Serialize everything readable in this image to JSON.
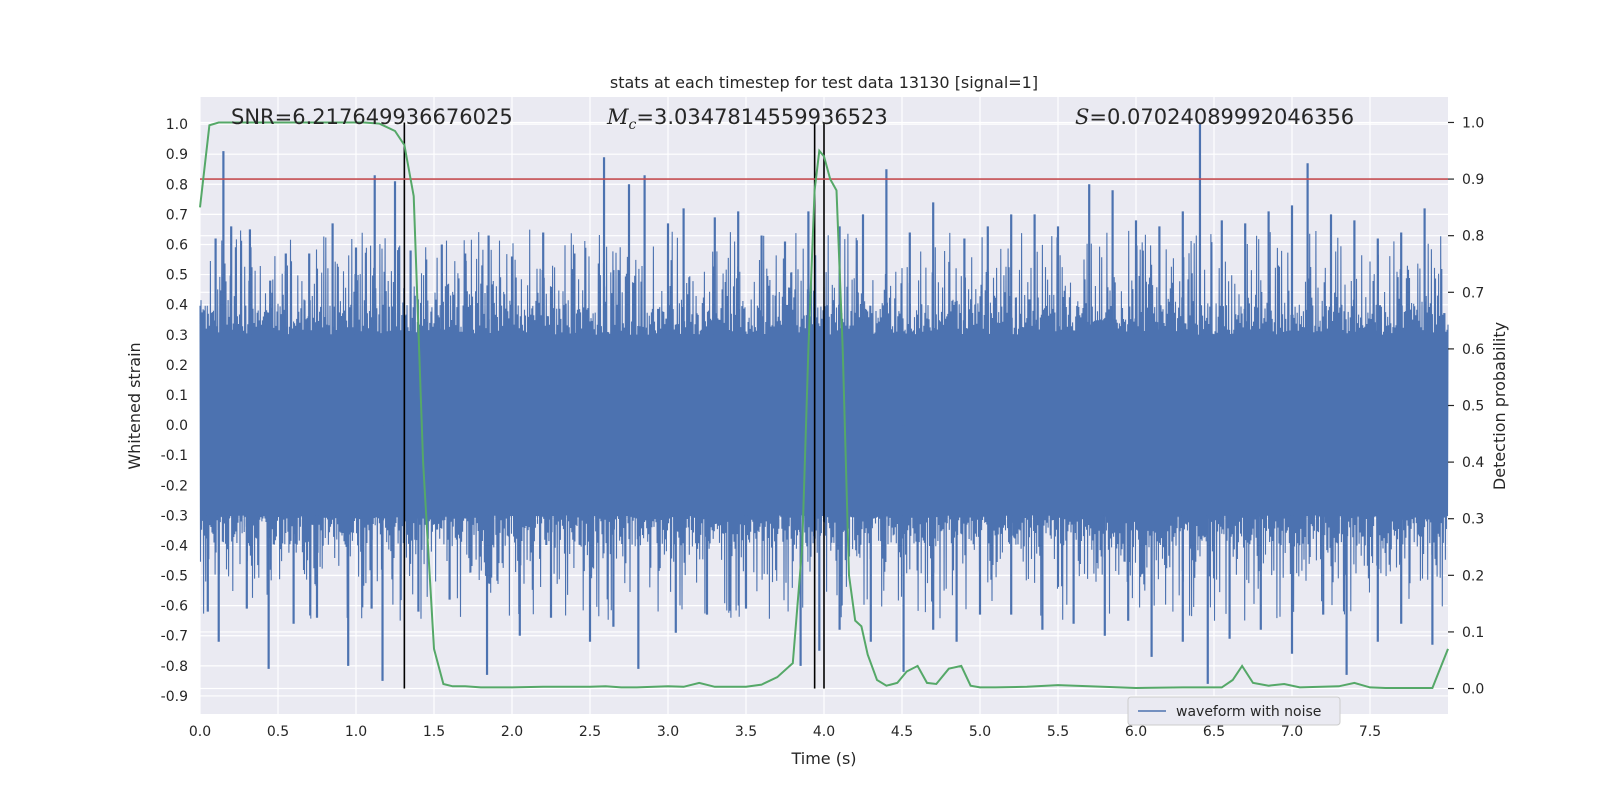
{
  "chart_data": {
    "type": "line",
    "title": "stats at each timestep for test data 13130 [signal=1]",
    "xlabel": "Time (s)",
    "ylabel": "Whitened strain",
    "y2label": "Detection probability",
    "xlim": [
      0.0,
      8.0
    ],
    "ylim": [
      -0.96,
      1.09
    ],
    "y2lim": [
      -0.045,
      1.045
    ],
    "x_ticks": [
      "0.0",
      "0.5",
      "1.0",
      "1.5",
      "2.0",
      "2.5",
      "3.0",
      "3.5",
      "4.0",
      "4.5",
      "5.0",
      "5.5",
      "6.0",
      "6.5",
      "7.0",
      "7.5"
    ],
    "y_ticks": [
      "1.0",
      "0.9",
      "0.8",
      "0.7",
      "0.6",
      "0.5",
      "0.4",
      "0.3",
      "0.2",
      "0.1",
      "0.0",
      "-0.1",
      "-0.2",
      "-0.3",
      "-0.4",
      "-0.5",
      "-0.6",
      "-0.7",
      "-0.8",
      "-0.9"
    ],
    "y2_ticks": [
      "1.0",
      "0.9",
      "0.8",
      "0.7",
      "0.6",
      "0.5",
      "0.4",
      "0.3",
      "0.2",
      "0.1",
      "0.0"
    ],
    "grid": true,
    "legend_placement": "bottom-right",
    "annotations": {
      "snr": "SNR=6.217649936676025",
      "mc_symbol": "M",
      "mc_sub": "c",
      "mc_value": "=3.0347814559936523",
      "s_symbol": "S",
      "s_value": "=0.07024089992046356"
    },
    "threshold": {
      "y2": 0.9,
      "color": "#c44e52"
    },
    "vertical_markers": [
      1.31,
      3.94,
      4.0
    ],
    "waveform": {
      "name": "waveform with noise",
      "color": "#4c72b0",
      "core_amplitude": 0.3,
      "spikes": [
        {
          "x": 0.1,
          "y": 0.62
        },
        {
          "x": 0.15,
          "y": 0.91
        },
        {
          "x": 0.2,
          "y": 0.66
        },
        {
          "x": 0.32,
          "y": 0.65
        },
        {
          "x": 0.45,
          "y": 0.48
        },
        {
          "x": 0.55,
          "y": 0.57
        },
        {
          "x": 0.7,
          "y": 0.57
        },
        {
          "x": 0.85,
          "y": 0.67
        },
        {
          "x": 1.0,
          "y": 0.59
        },
        {
          "x": 1.12,
          "y": 0.83
        },
        {
          "x": 1.25,
          "y": 0.81
        },
        {
          "x": 1.35,
          "y": 0.58
        },
        {
          "x": 1.45,
          "y": 0.55
        },
        {
          "x": 1.55,
          "y": 0.6
        },
        {
          "x": 1.7,
          "y": 0.57
        },
        {
          "x": 1.85,
          "y": 0.63
        },
        {
          "x": 2.0,
          "y": 0.56
        },
        {
          "x": 2.2,
          "y": 0.64
        },
        {
          "x": 2.4,
          "y": 0.57
        },
        {
          "x": 2.59,
          "y": 0.89
        },
        {
          "x": 2.75,
          "y": 0.8
        },
        {
          "x": 2.85,
          "y": 0.83
        },
        {
          "x": 3.0,
          "y": 0.67
        },
        {
          "x": 3.1,
          "y": 0.72
        },
        {
          "x": 3.3,
          "y": 0.69
        },
        {
          "x": 3.45,
          "y": 0.71
        },
        {
          "x": 3.6,
          "y": 0.63
        },
        {
          "x": 3.75,
          "y": 0.61
        },
        {
          "x": 3.9,
          "y": 0.71
        },
        {
          "x": 4.1,
          "y": 0.66
        },
        {
          "x": 4.25,
          "y": 0.7
        },
        {
          "x": 4.4,
          "y": 0.85
        },
        {
          "x": 4.55,
          "y": 0.64
        },
        {
          "x": 4.7,
          "y": 0.74
        },
        {
          "x": 4.9,
          "y": 0.62
        },
        {
          "x": 5.05,
          "y": 0.66
        },
        {
          "x": 5.2,
          "y": 0.7
        },
        {
          "x": 5.35,
          "y": 0.7
        },
        {
          "x": 5.5,
          "y": 0.66
        },
        {
          "x": 5.7,
          "y": 0.8
        },
        {
          "x": 5.85,
          "y": 0.78
        },
        {
          "x": 6.0,
          "y": 0.68
        },
        {
          "x": 6.15,
          "y": 0.66
        },
        {
          "x": 6.3,
          "y": 0.71
        },
        {
          "x": 6.41,
          "y": 1.0
        },
        {
          "x": 6.55,
          "y": 0.68
        },
        {
          "x": 6.7,
          "y": 0.67
        },
        {
          "x": 6.85,
          "y": 0.71
        },
        {
          "x": 7.0,
          "y": 0.73
        },
        {
          "x": 7.1,
          "y": 0.87
        },
        {
          "x": 7.25,
          "y": 0.7
        },
        {
          "x": 7.4,
          "y": 0.68
        },
        {
          "x": 7.55,
          "y": 0.62
        },
        {
          "x": 7.7,
          "y": 0.64
        },
        {
          "x": 7.85,
          "y": 0.72
        },
        {
          "x": 0.05,
          "y": -0.62
        },
        {
          "x": 0.12,
          "y": -0.72
        },
        {
          "x": 0.3,
          "y": -0.61
        },
        {
          "x": 0.44,
          "y": -0.81
        },
        {
          "x": 0.6,
          "y": -0.66
        },
        {
          "x": 0.75,
          "y": -0.64
        },
        {
          "x": 0.95,
          "y": -0.8
        },
        {
          "x": 1.1,
          "y": -0.61
        },
        {
          "x": 1.17,
          "y": -0.85
        },
        {
          "x": 1.4,
          "y": -0.62
        },
        {
          "x": 1.6,
          "y": -0.58
        },
        {
          "x": 1.84,
          "y": -0.83
        },
        {
          "x": 2.05,
          "y": -0.7
        },
        {
          "x": 2.25,
          "y": -0.64
        },
        {
          "x": 2.5,
          "y": -0.72
        },
        {
          "x": 2.65,
          "y": -0.67
        },
        {
          "x": 2.81,
          "y": -0.81
        },
        {
          "x": 3.05,
          "y": -0.69
        },
        {
          "x": 3.25,
          "y": -0.63
        },
        {
          "x": 3.5,
          "y": -0.61
        },
        {
          "x": 3.85,
          "y": -0.8
        },
        {
          "x": 3.97,
          "y": -0.75
        },
        {
          "x": 4.1,
          "y": -0.68
        },
        {
          "x": 4.3,
          "y": -0.72
        },
        {
          "x": 4.51,
          "y": -0.82
        },
        {
          "x": 4.7,
          "y": -0.68
        },
        {
          "x": 4.85,
          "y": -0.72
        },
        {
          "x": 5.0,
          "y": -0.63
        },
        {
          "x": 5.2,
          "y": -0.63
        },
        {
          "x": 5.4,
          "y": -0.68
        },
        {
          "x": 5.6,
          "y": -0.66
        },
        {
          "x": 5.8,
          "y": -0.7
        },
        {
          "x": 5.95,
          "y": -0.65
        },
        {
          "x": 6.1,
          "y": -0.77
        },
        {
          "x": 6.3,
          "y": -0.72
        },
        {
          "x": 6.46,
          "y": -0.86
        },
        {
          "x": 6.6,
          "y": -0.71
        },
        {
          "x": 6.8,
          "y": -0.68
        },
        {
          "x": 7.0,
          "y": -0.76
        },
        {
          "x": 7.2,
          "y": -0.63
        },
        {
          "x": 7.35,
          "y": -0.83
        },
        {
          "x": 7.55,
          "y": -0.72
        },
        {
          "x": 7.7,
          "y": -0.66
        },
        {
          "x": 7.9,
          "y": -0.73
        }
      ]
    },
    "detection_probability": {
      "color": "#55a868",
      "x": [
        0.0,
        0.06,
        0.12,
        0.2,
        0.3,
        0.5,
        0.7,
        0.9,
        1.05,
        1.15,
        1.25,
        1.31,
        1.37,
        1.43,
        1.5,
        1.56,
        1.62,
        1.7,
        1.8,
        2.0,
        2.2,
        2.4,
        2.5,
        2.6,
        2.7,
        2.8,
        3.0,
        3.1,
        3.2,
        3.3,
        3.5,
        3.6,
        3.7,
        3.8,
        3.86,
        3.9,
        3.94,
        3.97,
        4.0,
        4.04,
        4.08,
        4.12,
        4.16,
        4.2,
        4.24,
        4.28,
        4.34,
        4.4,
        4.47,
        4.53,
        4.6,
        4.66,
        4.72,
        4.8,
        4.88,
        4.94,
        5.0,
        5.1,
        5.3,
        5.5,
        5.7,
        6.0,
        6.3,
        6.55,
        6.62,
        6.68,
        6.75,
        6.85,
        6.95,
        7.05,
        7.3,
        7.4,
        7.5,
        7.6,
        7.8,
        7.9,
        8.0
      ],
      "values": [
        0.85,
        0.995,
        1.0,
        1.0,
        1.0,
        1.0,
        1.0,
        1.0,
        1.0,
        0.998,
        0.985,
        0.96,
        0.87,
        0.4,
        0.07,
        0.008,
        0.004,
        0.004,
        0.002,
        0.002,
        0.003,
        0.003,
        0.003,
        0.004,
        0.002,
        0.002,
        0.004,
        0.003,
        0.01,
        0.003,
        0.003,
        0.007,
        0.02,
        0.045,
        0.25,
        0.6,
        0.88,
        0.95,
        0.94,
        0.9,
        0.88,
        0.6,
        0.2,
        0.12,
        0.11,
        0.06,
        0.015,
        0.005,
        0.01,
        0.03,
        0.04,
        0.01,
        0.008,
        0.035,
        0.04,
        0.005,
        0.002,
        0.002,
        0.003,
        0.006,
        0.004,
        0.001,
        0.002,
        0.002,
        0.015,
        0.04,
        0.01,
        0.005,
        0.008,
        0.002,
        0.004,
        0.01,
        0.002,
        0.001,
        0.001,
        0.001,
        0.07
      ]
    }
  }
}
